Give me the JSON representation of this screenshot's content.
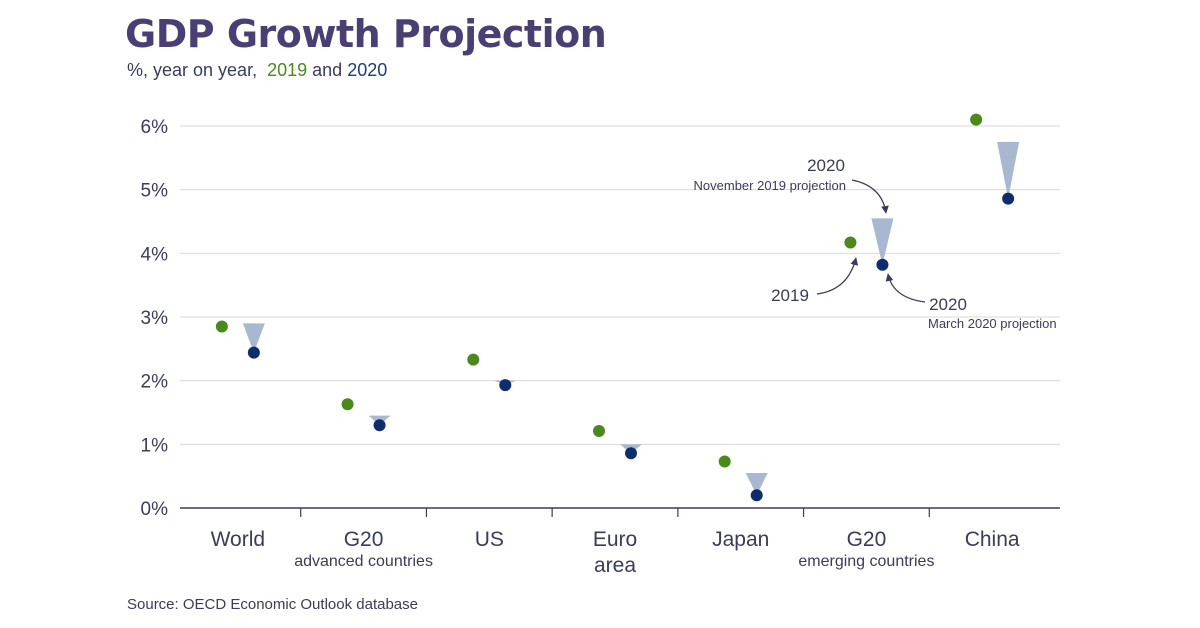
{
  "title": "GDP Growth Projection",
  "subtitle": {
    "prefix": "%, year on year,",
    "year_a": "2019",
    "joiner": "and",
    "year_b": "2020"
  },
  "source": "Source: OECD Economic Outlook database",
  "colors": {
    "series_2019": "#4a8a1c",
    "series_2020": "#0e2d6b",
    "change_triangle": "#a9b8d1",
    "grid": "#d9d9d9",
    "text": "#3b3b5c",
    "title": "#4a3f72"
  },
  "chart_data": {
    "type": "scatter",
    "title": "GDP Growth Projection",
    "subtitle": "%, year on year, 2019 and 2020",
    "ylim": [
      0,
      6
    ],
    "y_ticks": [
      "0%",
      "1%",
      "2%",
      "3%",
      "4%",
      "5%",
      "6%"
    ],
    "y_tick_values": [
      0,
      1,
      2,
      3,
      4,
      5,
      6
    ],
    "grid": true,
    "categories": [
      {
        "label": "World",
        "sublabel": ""
      },
      {
        "label": "G20",
        "sublabel": "advanced countries"
      },
      {
        "label": "US",
        "sublabel": ""
      },
      {
        "label": "Euro",
        "label2": "area",
        "sublabel": ""
      },
      {
        "label": "Japan",
        "sublabel": ""
      },
      {
        "label": "G20",
        "sublabel": "emerging countries"
      },
      {
        "label": "China",
        "sublabel": ""
      }
    ],
    "series": [
      {
        "name": "2019",
        "values": [
          2.85,
          1.63,
          2.33,
          1.21,
          0.73,
          4.17,
          6.1
        ]
      },
      {
        "name": "2020",
        "values": [
          2.44,
          1.3,
          1.93,
          0.86,
          0.2,
          3.82,
          4.86
        ]
      }
    ],
    "nov_2019_projection_2020": [
      2.9,
      1.45,
      2.0,
      1.0,
      0.55,
      4.55,
      5.75
    ],
    "annotations": {
      "nov_year": "2020",
      "nov_text": "November 2019 projection",
      "year_2019": "2019",
      "march_year": "2020",
      "march_text": "March 2020 projection"
    },
    "source": "Source: OECD Economic Outlook database"
  }
}
